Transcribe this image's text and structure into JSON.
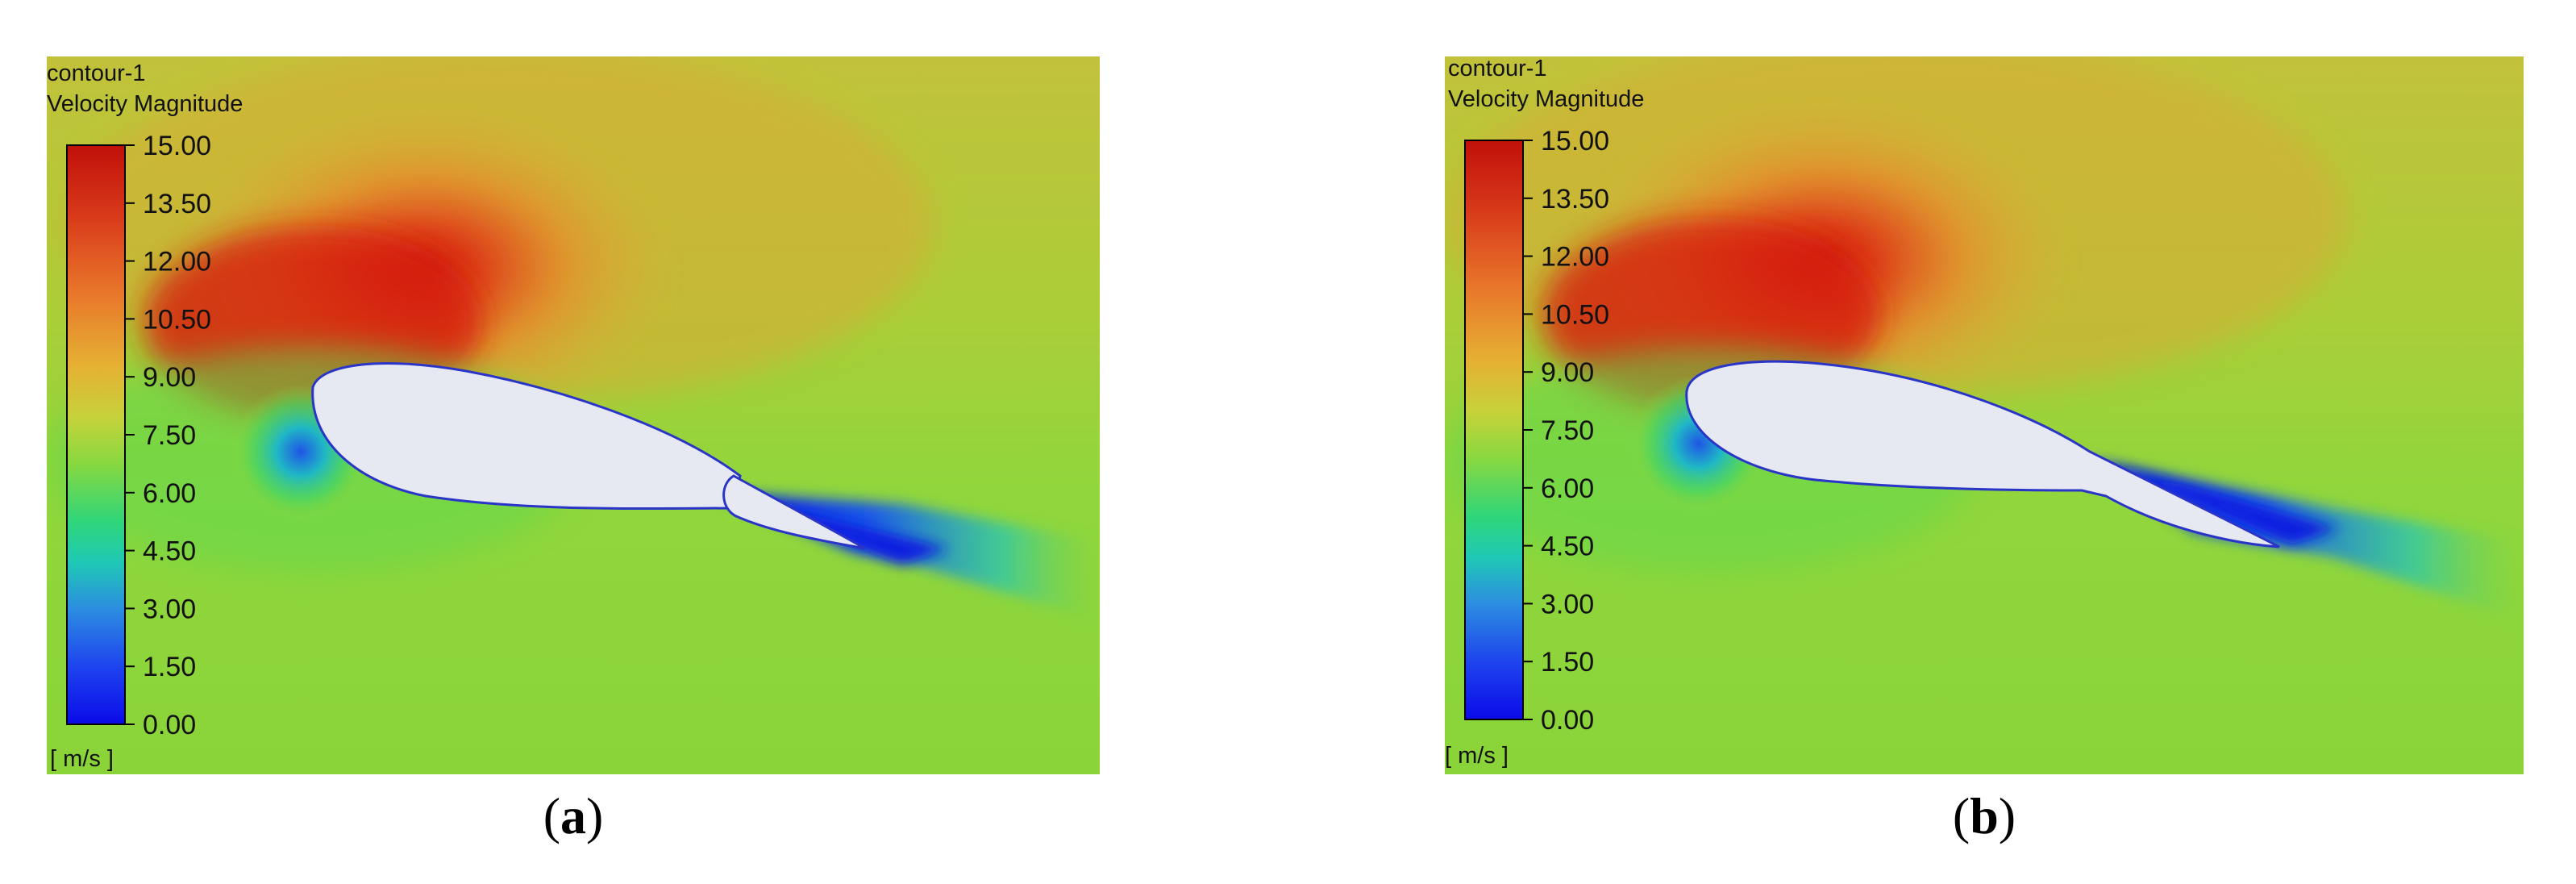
{
  "panels": [
    {
      "id": "a",
      "caption_letter": "a",
      "contour_name": "contour-1",
      "quantity": "Velocity Magnitude",
      "unit": "[ m/s ]",
      "colorbar_ticks": [
        "15.00",
        "13.50",
        "12.00",
        "10.50",
        "9.00",
        "7.50",
        "6.00",
        "4.50",
        "3.00",
        "1.50",
        "0.00"
      ]
    },
    {
      "id": "b",
      "caption_letter": "b",
      "contour_name": "contour-1",
      "quantity": "Velocity Magnitude",
      "unit": "[ m/s ]",
      "colorbar_ticks": [
        "15.00",
        "13.50",
        "12.00",
        "10.50",
        "9.00",
        "7.50",
        "6.00",
        "4.50",
        "3.00",
        "1.50",
        "0.00"
      ]
    }
  ],
  "colors": {
    "freestream": "#8fd63a",
    "high": "#d01a0a",
    "mid_high": "#e58f2a",
    "wake": "#0a1ee0",
    "airfoil_fill": "#e6e9f2"
  }
}
